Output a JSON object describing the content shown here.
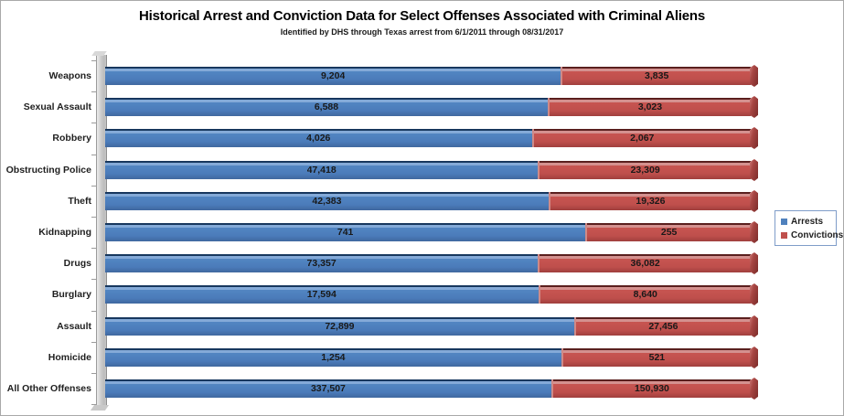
{
  "title": "Historical Arrest and Conviction Data for Select Offenses Associated with Criminal Aliens",
  "subtitle": "Identified by DHS through Texas arrest from 6/1/2011 through 08/31/2017",
  "chart_data": {
    "type": "bar",
    "subtype": "horizontal-100%-stacked-3d",
    "title": "Historical Arrest and Conviction Data for Select Offenses Associated with Criminal Aliens",
    "subtitle": "Identified by DHS through Texas arrest from 6/1/2011 through 08/31/2017",
    "xlabel": "",
    "ylabel": "",
    "legend_position": "right",
    "grid": false,
    "value_axis_visible": false,
    "categories": [
      "Weapons",
      "Sexual Assault",
      "Robbery",
      "Obstructing Police",
      "Theft",
      "Kidnapping",
      "Drugs",
      "Burglary",
      "Assault",
      "Homicide",
      "All Other Offenses"
    ],
    "series": [
      {
        "name": "Arrests",
        "values": [
          9204,
          6588,
          4026,
          47418,
          42383,
          741,
          73357,
          17594,
          72899,
          1254,
          337507
        ],
        "display": [
          "9,204",
          "6,588",
          "4,026",
          "47,418",
          "42,383",
          "741",
          "73,357",
          "17,594",
          "72,899",
          "1,254",
          "337,507"
        ]
      },
      {
        "name": "Convictions",
        "values": [
          3835,
          3023,
          2067,
          23309,
          19326,
          255,
          36082,
          8640,
          27456,
          521,
          150930
        ],
        "display": [
          "3,835",
          "3,023",
          "2,067",
          "23,309",
          "19,326",
          "255",
          "36,082",
          "8,640",
          "27,456",
          "521",
          "150,930"
        ]
      }
    ],
    "colors": {
      "arrests": "#4F81BD",
      "convictions": "#C0504D",
      "wall": "#C6C6C6",
      "label_text": "#1A1A1A"
    }
  }
}
